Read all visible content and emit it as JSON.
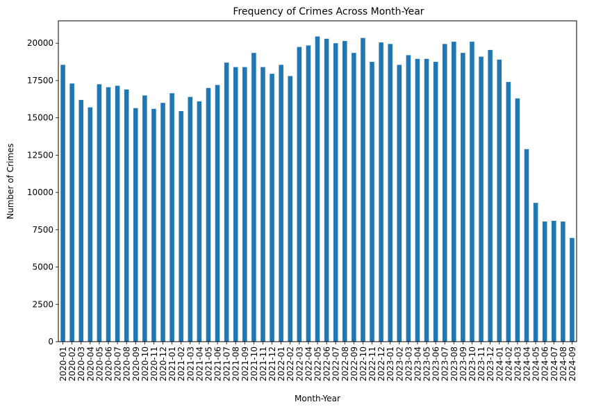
{
  "chart_data": {
    "type": "bar",
    "title": "Frequency of Crimes Across Month-Year",
    "xlabel": "Month-Year",
    "ylabel": "Number of Crimes",
    "ylim": [
      0,
      21500
    ],
    "yticks": [
      0,
      2500,
      5000,
      7500,
      10000,
      12500,
      15000,
      17500,
      20000
    ],
    "grid": false,
    "bar_color": "#1f77b4",
    "categories": [
      "2020-01",
      "2020-02",
      "2020-03",
      "2020-04",
      "2020-05",
      "2020-06",
      "2020-07",
      "2020-08",
      "2020-09",
      "2020-10",
      "2020-11",
      "2020-12",
      "2021-01",
      "2021-02",
      "2021-03",
      "2021-04",
      "2021-05",
      "2021-06",
      "2021-07",
      "2021-08",
      "2021-09",
      "2021-10",
      "2021-11",
      "2021-12",
      "2022-01",
      "2022-02",
      "2022-03",
      "2022-04",
      "2022-05",
      "2022-06",
      "2022-07",
      "2022-08",
      "2022-09",
      "2022-10",
      "2022-11",
      "2022-12",
      "2023-01",
      "2023-02",
      "2023-03",
      "2023-04",
      "2023-05",
      "2023-06",
      "2023-07",
      "2023-08",
      "2023-09",
      "2023-10",
      "2023-11",
      "2023-12",
      "2024-01",
      "2024-02",
      "2024-03",
      "2024-04",
      "2024-05",
      "2024-06",
      "2024-07",
      "2024-08",
      "2024-09"
    ],
    "values": [
      18550,
      17300,
      16200,
      15700,
      17250,
      17050,
      17150,
      16900,
      15650,
      16500,
      15600,
      16000,
      16650,
      15450,
      16400,
      16100,
      17000,
      17200,
      18700,
      18400,
      18400,
      19350,
      18400,
      17950,
      18550,
      17800,
      19750,
      19850,
      20450,
      20300,
      20000,
      20150,
      19350,
      20350,
      18750,
      20050,
      19950,
      18550,
      19200,
      18950,
      18950,
      18750,
      19950,
      20100,
      19350,
      20100,
      19100,
      19550,
      18900,
      17400,
      16300,
      12900,
      9300,
      8050,
      8100,
      8050,
      6950
    ]
  }
}
